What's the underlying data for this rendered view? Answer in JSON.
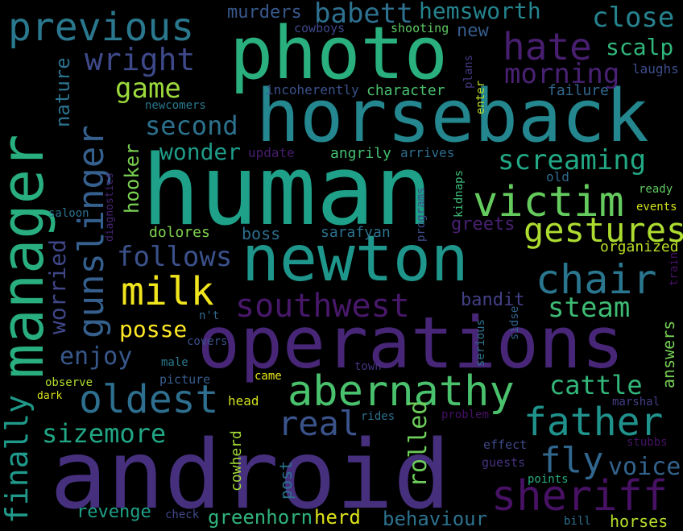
{
  "background": "#000000",
  "words": [
    {
      "text": "android",
      "color": "#46307e"
    },
    {
      "text": "human",
      "color": "#1fa088"
    },
    {
      "text": "horseback",
      "color": "#24868e"
    },
    {
      "text": "operations",
      "color": "#482677"
    },
    {
      "text": "photo",
      "color": "#2ab07f"
    },
    {
      "text": "newton",
      "color": "#1f968b"
    },
    {
      "text": "manager",
      "color": "#29af7f"
    },
    {
      "text": "previous",
      "color": "#2a788e"
    },
    {
      "text": "victim",
      "color": "#65cb5e"
    },
    {
      "text": "abernathy",
      "color": "#4ac16d"
    },
    {
      "text": "father",
      "color": "#20928c"
    },
    {
      "text": "oldest",
      "color": "#2e6e8e"
    },
    {
      "text": "chair",
      "color": "#2a768e"
    },
    {
      "text": "gunslinger",
      "color": "#355f8d"
    },
    {
      "text": "hate",
      "color": "#481f70"
    },
    {
      "text": "milk",
      "color": "#f1e51d"
    },
    {
      "text": "southwest",
      "color": "#48186a"
    },
    {
      "text": "finally",
      "color": "#1f9a8a"
    },
    {
      "text": "sheriff",
      "color": "#471164"
    },
    {
      "text": "real",
      "color": "#3a538b"
    },
    {
      "text": "gestures",
      "color": "#addc30"
    },
    {
      "text": "wright",
      "color": "#3e4989"
    },
    {
      "text": "screaming",
      "color": "#22a884"
    },
    {
      "text": "fly",
      "color": "#31668e"
    },
    {
      "text": "sizemore",
      "color": "#21a685"
    },
    {
      "text": "close",
      "color": "#26828e"
    },
    {
      "text": "morning",
      "color": "#482173"
    },
    {
      "text": "game",
      "color": "#9bd93c"
    },
    {
      "text": "babett",
      "color": "#2d718e"
    },
    {
      "text": "hemsworth",
      "color": "#25848e"
    },
    {
      "text": "second",
      "color": "#2c728e"
    },
    {
      "text": "follows",
      "color": "#3b518b"
    },
    {
      "text": "steam",
      "color": "#3ebc74"
    },
    {
      "text": "cattle",
      "color": "#32b67a"
    },
    {
      "text": "voice",
      "color": "#33638d"
    },
    {
      "text": "enjoy",
      "color": "#38588c"
    },
    {
      "text": "posse",
      "color": "#fde725"
    },
    {
      "text": "worried",
      "color": "#3f4788"
    },
    {
      "text": "wonder",
      "color": "#1e9c89"
    },
    {
      "text": "rolled",
      "color": "#6ccd5a"
    },
    {
      "text": "scalp",
      "color": "#31b57b"
    },
    {
      "text": "nature",
      "color": "#2c728e"
    },
    {
      "text": "hooker",
      "color": "#7ad151"
    },
    {
      "text": "herd",
      "color": "#dde318"
    },
    {
      "text": "revenge",
      "color": "#1fa187"
    },
    {
      "text": "greenhorn",
      "color": "#2fb47c"
    },
    {
      "text": "behaviour",
      "color": "#2c728e"
    },
    {
      "text": "horses",
      "color": "#b5de2b"
    },
    {
      "text": "bandit",
      "color": "#424086"
    },
    {
      "text": "answers",
      "color": "#75d054"
    },
    {
      "text": "murders",
      "color": "#38588c"
    },
    {
      "text": "new",
      "color": "#365d8d"
    },
    {
      "text": "boss",
      "color": "#2e6f8e"
    },
    {
      "text": "sarafyan",
      "color": "#2c728e"
    },
    {
      "text": "dolores",
      "color": "#7fd34e"
    },
    {
      "text": "greets",
      "color": "#482071"
    },
    {
      "text": "organized",
      "color": "#bade28"
    },
    {
      "text": "cowboys",
      "color": "#3e4989"
    },
    {
      "text": "shooting",
      "color": "#5ec962"
    },
    {
      "text": "character",
      "color": "#4ac16d"
    },
    {
      "text": "failure",
      "color": "#31678e"
    },
    {
      "text": "laughs",
      "color": "#3d4e8a"
    },
    {
      "text": "incoherently",
      "color": "#3b528b"
    },
    {
      "text": "newcomers",
      "color": "#2a788e"
    },
    {
      "text": "enter",
      "color": "#bddf26"
    },
    {
      "text": "plans",
      "color": "#453781"
    },
    {
      "text": "update",
      "color": "#481d6f"
    },
    {
      "text": "angrily",
      "color": "#44bf70"
    },
    {
      "text": "arrives",
      "color": "#2e6e8e"
    },
    {
      "text": "old",
      "color": "#306a8e"
    },
    {
      "text": "ready",
      "color": "#5ec962"
    },
    {
      "text": "events",
      "color": "#d2e21b"
    },
    {
      "text": "saloon",
      "color": "#2c718e"
    },
    {
      "text": "diagnostics",
      "color": "#482475"
    },
    {
      "text": "programs",
      "color": "#3d4d8a"
    },
    {
      "text": "kidnaps",
      "color": "#3aba76"
    },
    {
      "text": "train",
      "color": "#471063"
    },
    {
      "text": "post",
      "color": "#2c728e"
    },
    {
      "text": "cowherd",
      "color": "#a2da37"
    },
    {
      "text": "n't",
      "color": "#306a8e"
    },
    {
      "text": "covers",
      "color": "#3c4f8a"
    },
    {
      "text": "male",
      "color": "#2a788e"
    },
    {
      "text": "picture",
      "color": "#365c8d"
    },
    {
      "text": "came",
      "color": "#e5e419"
    },
    {
      "text": "town",
      "color": "#46337f"
    },
    {
      "text": "serious",
      "color": "#2c738e"
    },
    {
      "text": "sidse",
      "color": "#32648e"
    },
    {
      "text": "observe",
      "color": "#b0dd2f"
    },
    {
      "text": "dark",
      "color": "#d8e219"
    },
    {
      "text": "head",
      "color": "#d0e11c"
    },
    {
      "text": "rides",
      "color": "#2d708e"
    },
    {
      "text": "problem",
      "color": "#471164"
    },
    {
      "text": "marshal",
      "color": "#433e85"
    },
    {
      "text": "effect",
      "color": "#3f4889"
    },
    {
      "text": "guests",
      "color": "#46327e"
    },
    {
      "text": "stubbs",
      "color": "#471365"
    },
    {
      "text": "points",
      "color": "#26ad81"
    },
    {
      "text": "check",
      "color": "#3f4889"
    },
    {
      "text": "bill",
      "color": "#2d708e"
    }
  ]
}
